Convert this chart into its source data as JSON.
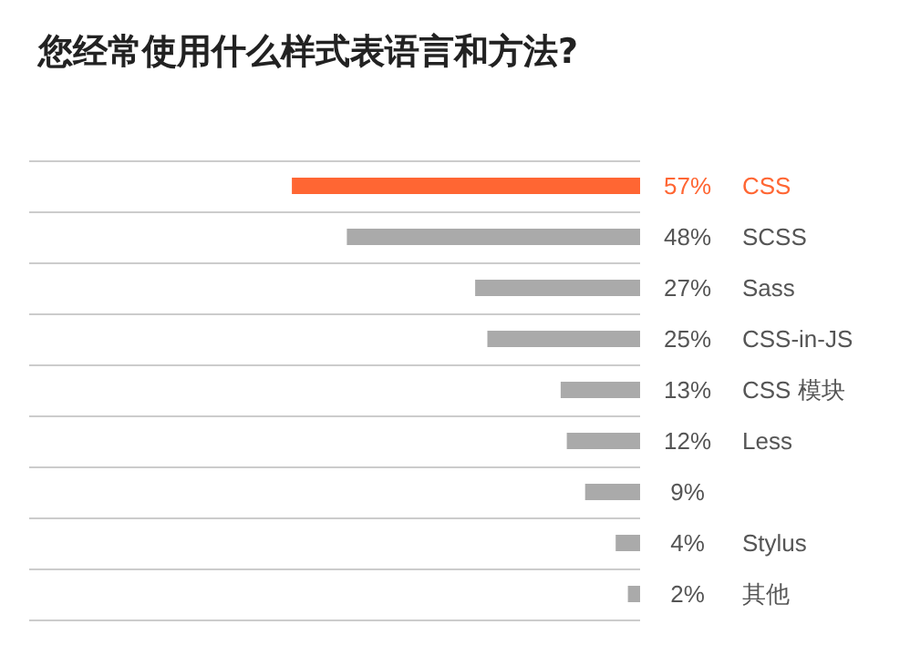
{
  "chart_data": {
    "type": "bar",
    "orientation": "horizontal",
    "title": "您经常使用什么样式表语言和方法?",
    "categories": [
      "CSS",
      "SCSS",
      "Sass",
      "CSS-in-JS",
      "CSS 模块",
      "Less",
      null,
      "Stylus",
      "其他"
    ],
    "values": [
      57,
      48,
      27,
      25,
      13,
      12,
      9,
      4,
      2
    ],
    "value_labels": [
      "57%",
      "48%",
      "27%",
      "25%",
      "13%",
      "12%",
      "9%",
      "4%",
      "2%"
    ],
    "colors": [
      "#ff6633",
      "#aaaaaa",
      "#aaaaaa",
      "#aaaaaa",
      "#aaaaaa",
      "#aaaaaa",
      "#aaaaaa",
      "#aaaaaa",
      "#aaaaaa"
    ],
    "xlim": [
      100,
      0
    ],
    "grid": "y"
  }
}
